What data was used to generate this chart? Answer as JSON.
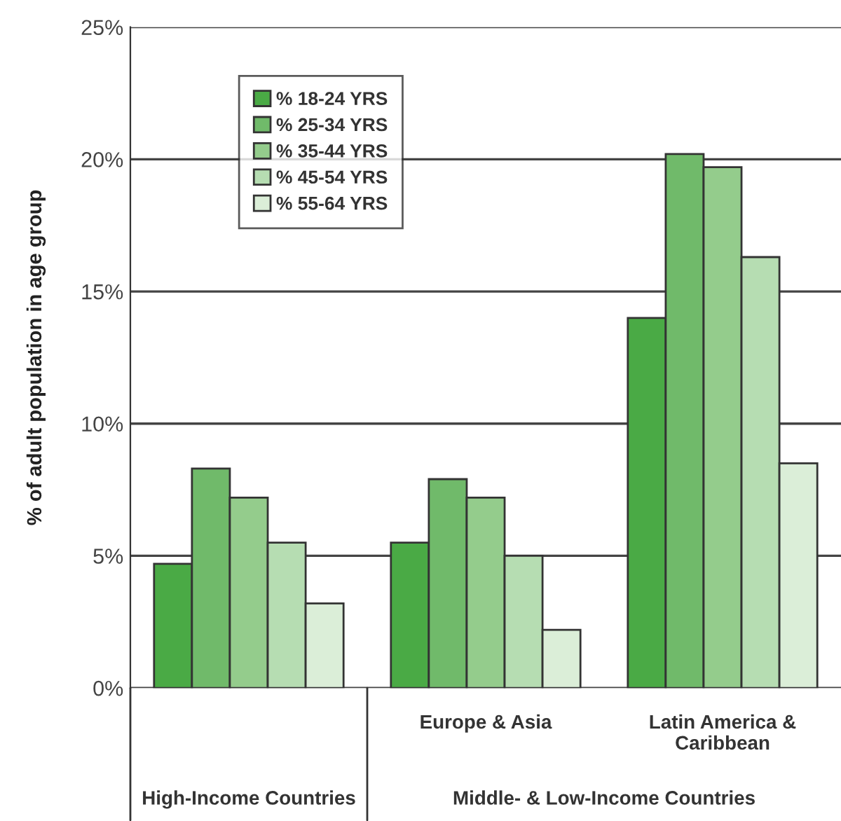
{
  "chart_data": {
    "type": "bar",
    "ylabel": "% of adult population in age group",
    "categories": [
      null,
      "Europe & Asia",
      "Latin America & Caribbean"
    ],
    "series": [
      {
        "name": "% 18-24 YRS",
        "color": "#4aaa45",
        "values": [
          4.7,
          5.5,
          14.0
        ]
      },
      {
        "name": "% 25-34 YRS",
        "color": "#70ba6a",
        "values": [
          8.3,
          7.9,
          20.2
        ]
      },
      {
        "name": "% 35-44 YRS",
        "color": "#94cc8c",
        "values": [
          7.2,
          7.2,
          19.7
        ]
      },
      {
        "name": "% 45-54 YRS",
        "color": "#b6ddb2",
        "values": [
          5.5,
          5.0,
          16.3
        ]
      },
      {
        "name": "% 55-64 YRS",
        "color": "#dbeed8",
        "values": [
          3.2,
          2.2,
          8.5
        ]
      }
    ],
    "ylim": [
      0,
      25
    ],
    "yticks": [
      {
        "value": 0,
        "label": "0%"
      },
      {
        "value": 5,
        "label": "5%"
      },
      {
        "value": 10,
        "label": "10%"
      },
      {
        "value": 15,
        "label": "15%"
      },
      {
        "value": 20,
        "label": "20%"
      },
      {
        "value": 25,
        "label": "25%"
      }
    ],
    "grid": "y",
    "legend": "top left",
    "annotations": [
      "High-Income Countries",
      "Middle- & Low-Income Countries"
    ]
  }
}
